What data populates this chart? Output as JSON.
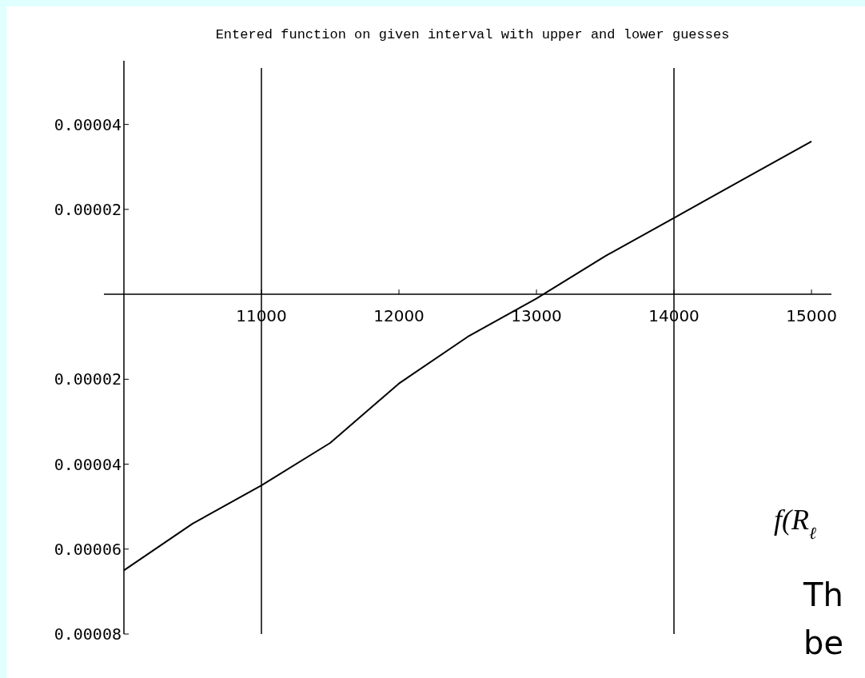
{
  "chart_data": {
    "type": "line",
    "title": "Entered function on given interval with upper and lower guesses",
    "x": [
      10000,
      10500,
      11000,
      11500,
      12000,
      12500,
      13000,
      13500,
      14000,
      14500,
      15000
    ],
    "series": [
      {
        "color": "#000000",
        "values": [
          -6.5e-05,
          -5.4e-05,
          -4.5e-05,
          -3.5e-05,
          -2.1e-05,
          -1e-05,
          -1e-06,
          9e-06,
          1.8e-05,
          2.7e-05,
          3.6e-05
        ]
      }
    ],
    "xlim": [
      10000,
      15145
    ],
    "xticks": [
      11000,
      12000,
      13000,
      14000,
      15000
    ],
    "ylim": [
      -8e-05,
      5.5e-05
    ],
    "yticks": [
      {
        "value": -8e-05,
        "label": "0.00008"
      },
      {
        "value": -6e-05,
        "label": "0.00006"
      },
      {
        "value": -4e-05,
        "label": "0.00004"
      },
      {
        "value": -2e-05,
        "label": "0.00002"
      },
      {
        "value": 2e-05,
        "label": "0.00002"
      },
      {
        "value": 4e-05,
        "label": "0.00004"
      }
    ],
    "ref_lines": [
      {
        "axis": "x",
        "value": 11000,
        "color": "#000000"
      },
      {
        "axis": "x",
        "value": 14000,
        "color": "#000000"
      }
    ],
    "annotations": [
      "f(R$_{ℓ}$",
      "Th",
      "be"
    ],
    "grid": false,
    "marker": "none",
    "line_style": "solid"
  }
}
